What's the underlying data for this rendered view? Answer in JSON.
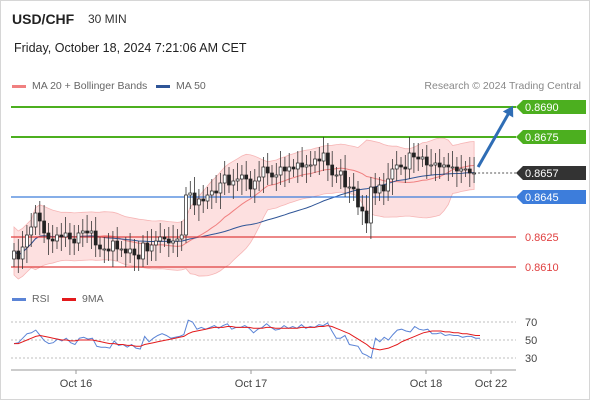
{
  "header": {
    "symbol": "USD/CHF",
    "timeframe": "30 MIN",
    "datetime": "Friday, October 18, 2024 7:21:06 AM CET"
  },
  "legend": {
    "ma20_label": "MA 20 + Bollinger Bands",
    "ma20_color": "#f08080",
    "ma50_label": "MA 50",
    "ma50_color": "#2f5597",
    "research": "Research © 2024 Trading Central",
    "rsi_label": "RSI",
    "rsi_color": "#5b84d6",
    "ma9_label": "9MA",
    "ma9_color": "#e31a1c"
  },
  "chart_data": [
    {
      "type": "candlestick",
      "x_labels": [
        "Oct 16",
        "Oct 17",
        "Oct 18",
        "Oct 22"
      ],
      "current_price": {
        "value": 0.8657,
        "label": "0.8657",
        "color": "#333333"
      },
      "levels": [
        {
          "value": 0.869,
          "label": "0.8690",
          "color": "#4caf1f",
          "kind": "resistance"
        },
        {
          "value": 0.8675,
          "label": "0.8675",
          "color": "#4caf1f",
          "kind": "resistance"
        },
        {
          "value": 0.8645,
          "label": "0.8645",
          "color": "#3d7ddb",
          "kind": "pivot"
        },
        {
          "value": 0.8625,
          "label": "0.8625",
          "color": "#e04040",
          "kind": "support"
        },
        {
          "value": 0.861,
          "label": "0.8610",
          "color": "#e04040",
          "kind": "support"
        }
      ],
      "forecast": {
        "from": 0.866,
        "to": 0.869,
        "direction": "up",
        "color": "#2f6db5"
      },
      "closes": [
        0.8618,
        0.8614,
        0.862,
        0.8626,
        0.863,
        0.8637,
        0.8633,
        0.8627,
        0.8624,
        0.8623,
        0.8626,
        0.8625,
        0.8627,
        0.8624,
        0.8622,
        0.8627,
        0.8628,
        0.8627,
        0.8628,
        0.8621,
        0.8619,
        0.8619,
        0.8618,
        0.8623,
        0.8619,
        0.8619,
        0.8617,
        0.8619,
        0.8616,
        0.8614,
        0.8622,
        0.8618,
        0.8621,
        0.8623,
        0.8625,
        0.8624,
        0.8622,
        0.8623,
        0.8624,
        0.8626,
        0.8646,
        0.8647,
        0.8641,
        0.8644,
        0.8643,
        0.8646,
        0.8648,
        0.8647,
        0.8652,
        0.8656,
        0.8651,
        0.8653,
        0.8654,
        0.8656,
        0.8654,
        0.8649,
        0.8653,
        0.8655,
        0.866,
        0.8657,
        0.8655,
        0.8656,
        0.866,
        0.8658,
        0.866,
        0.8659,
        0.8662,
        0.866,
        0.8661,
        0.8661,
        0.8664,
        0.8663,
        0.8667,
        0.8661,
        0.8656,
        0.8656,
        0.8658,
        0.865,
        0.865,
        0.8649,
        0.864,
        0.8638,
        0.8632,
        0.865,
        0.8647,
        0.8651,
        0.8648,
        0.8654,
        0.8659,
        0.8661,
        0.866,
        0.8659,
        0.8667,
        0.8665,
        0.8664,
        0.8665,
        0.8661,
        0.8661,
        0.8662,
        0.866,
        0.8661,
        0.866,
        0.866,
        0.8658,
        0.8659,
        0.8659,
        0.8657,
        0.8657
      ],
      "rsi": {
        "ticks": [
          70,
          50,
          30
        ],
        "ylim": [
          22,
          76
        ],
        "rsi_values": [
          46,
          47,
          52,
          57,
          58,
          61,
          55,
          49,
          46,
          47,
          51,
          49,
          52,
          47,
          45,
          52,
          53,
          51,
          52,
          43,
          42,
          42,
          41,
          49,
          44,
          45,
          42,
          45,
          41,
          40,
          54,
          48,
          52,
          55,
          57,
          55,
          52,
          53,
          54,
          56,
          72,
          70,
          62,
          64,
          62,
          64,
          66,
          63,
          66,
          68,
          62,
          64,
          64,
          66,
          63,
          58,
          62,
          64,
          68,
          64,
          61,
          62,
          66,
          63,
          65,
          63,
          67,
          63,
          65,
          64,
          67,
          66,
          69,
          60,
          52,
          52,
          55,
          45,
          44,
          43,
          35,
          33,
          30,
          52,
          48,
          53,
          50,
          56,
          61,
          62,
          60,
          59,
          65,
          62,
          61,
          62,
          57,
          57,
          58,
          55,
          56,
          55,
          55,
          53,
          54,
          54,
          52,
          52
        ],
        "ma9_values": [
          46,
          46,
          48,
          50,
          52,
          54,
          55,
          54,
          53,
          52,
          51,
          50,
          50,
          49,
          49,
          50,
          50,
          50,
          50,
          49,
          48,
          47,
          46,
          46,
          45,
          45,
          44,
          44,
          43,
          43,
          45,
          46,
          47,
          48,
          49,
          50,
          51,
          52,
          53,
          54,
          57,
          59,
          60,
          61,
          62,
          63,
          64,
          64,
          64,
          65,
          65,
          64,
          64,
          64,
          64,
          63,
          63,
          63,
          64,
          64,
          63,
          63,
          63,
          63,
          63,
          63,
          64,
          64,
          64,
          64,
          65,
          65,
          66,
          65,
          63,
          61,
          59,
          57,
          54,
          51,
          48,
          45,
          41,
          40,
          39,
          40,
          41,
          43,
          45,
          48,
          50,
          52,
          54,
          56,
          58,
          59,
          60,
          60,
          60,
          59,
          59,
          58,
          58,
          57,
          57,
          56,
          55,
          55
        ]
      }
    }
  ]
}
